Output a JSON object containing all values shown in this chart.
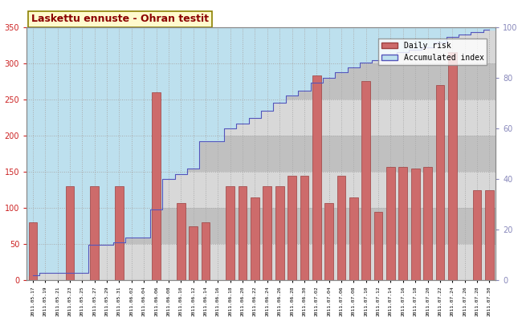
{
  "title": "Laskettu ennuste - Ohran testit",
  "title_color": "#8B0000",
  "title_bg": "#FFFACD",
  "title_border": "#8B8000",
  "bar_color": "#CD6B6B",
  "bar_edge_color": "#9B4040",
  "accumulated_line_color": "#5555BB",
  "accumulated_fill_color": "#BDE0EE",
  "bg_light": "#D8D8D8",
  "bg_dark": "#C0C0C0",
  "grid_color": "#AAAAAA",
  "left_axis_color": "#CC2222",
  "right_axis_color": "#8888BB",
  "ylim_left": [
    0,
    350
  ],
  "ylim_right": [
    0,
    100
  ],
  "dates": [
    "2011.05.17",
    "2011.05.19",
    "2011.05.21",
    "2011.05.23",
    "2011.05.25",
    "2011.05.27",
    "2011.05.29",
    "2011.05.31",
    "2011.06.02",
    "2011.06.04",
    "2011.06.06",
    "2011.06.08",
    "2011.06.10",
    "2011.06.12",
    "2011.06.14",
    "2011.06.16",
    "2011.06.18",
    "2011.06.20",
    "2011.06.22",
    "2011.06.24",
    "2011.06.26",
    "2011.06.28",
    "2011.06.30",
    "2011.07.02",
    "2011.07.04",
    "2011.07.06",
    "2011.07.08",
    "2011.07.10",
    "2011.07.12",
    "2011.07.14",
    "2011.07.16",
    "2011.07.18",
    "2011.07.20",
    "2011.07.22",
    "2011.07.24",
    "2011.07.26",
    "2011.07.28",
    "2011.07.30"
  ],
  "daily_risk": [
    80,
    0,
    0,
    130,
    0,
    130,
    0,
    130,
    0,
    0,
    260,
    0,
    107,
    75,
    80,
    0,
    130,
    130,
    115,
    130,
    130,
    145,
    145,
    283,
    107,
    145,
    115,
    275,
    95,
    157,
    157,
    155,
    157,
    270,
    315,
    0,
    125,
    125
  ],
  "accumulated_index": [
    2,
    3,
    3,
    3,
    3,
    14,
    14,
    15,
    17,
    17,
    28,
    40,
    42,
    44,
    55,
    55,
    60,
    62,
    64,
    67,
    70,
    73,
    75,
    78,
    80,
    82,
    84,
    86,
    87,
    89,
    90,
    91,
    92,
    94,
    96,
    97,
    98,
    99
  ],
  "legend_labels": [
    "Daily risk",
    "Accumulated index"
  ]
}
